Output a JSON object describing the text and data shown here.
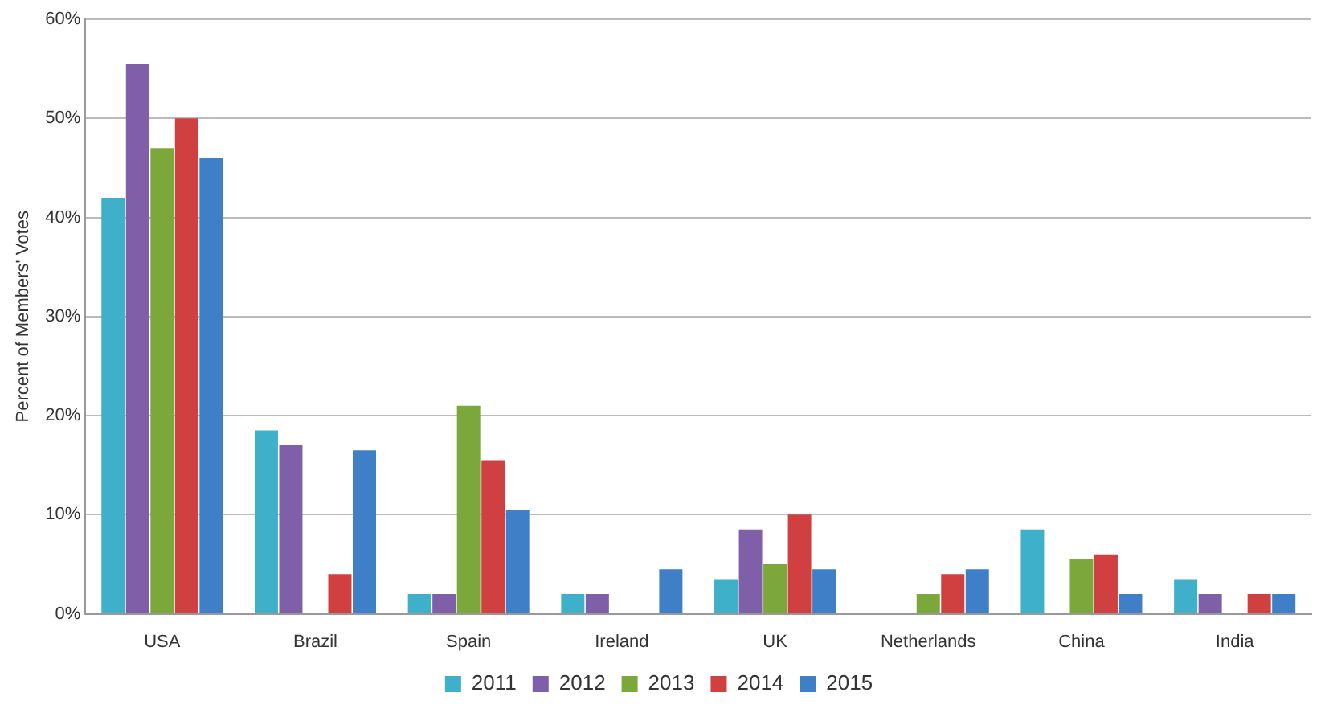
{
  "chart_data": {
    "type": "bar",
    "ylabel": "Percent of Members' Votes",
    "categories": [
      "USA",
      "Brazil",
      "Spain",
      "Ireland",
      "UK",
      "Netherlands",
      "China",
      "India"
    ],
    "series": [
      {
        "name": "2011",
        "color": "#3fb0c9",
        "values": [
          42,
          18.5,
          2,
          2,
          3.5,
          null,
          8.5,
          3.5
        ]
      },
      {
        "name": "2012",
        "color": "#7f60a8",
        "values": [
          55.5,
          17,
          2,
          2,
          8.5,
          null,
          null,
          2
        ]
      },
      {
        "name": "2013",
        "color": "#7ca83b",
        "values": [
          47,
          null,
          21,
          null,
          5,
          2,
          5.5,
          null
        ]
      },
      {
        "name": "2014",
        "color": "#d04040",
        "values": [
          50,
          4,
          15.5,
          null,
          10,
          4,
          6,
          2
        ]
      },
      {
        "name": "2015",
        "color": "#3f7fc8",
        "values": [
          46,
          16.5,
          10.5,
          4.5,
          4.5,
          4.5,
          2,
          2
        ]
      }
    ],
    "ylim": [
      0,
      60
    ],
    "yticks": [
      {
        "value": 0,
        "label": "0%"
      },
      {
        "value": 10,
        "label": "10%"
      },
      {
        "value": 20,
        "label": "20%"
      },
      {
        "value": 30,
        "label": "30%"
      },
      {
        "value": 40,
        "label": "40%"
      },
      {
        "value": 50,
        "label": "50%"
      },
      {
        "value": 60,
        "label": "60%"
      }
    ],
    "grid": "y",
    "legend": "bottom"
  }
}
